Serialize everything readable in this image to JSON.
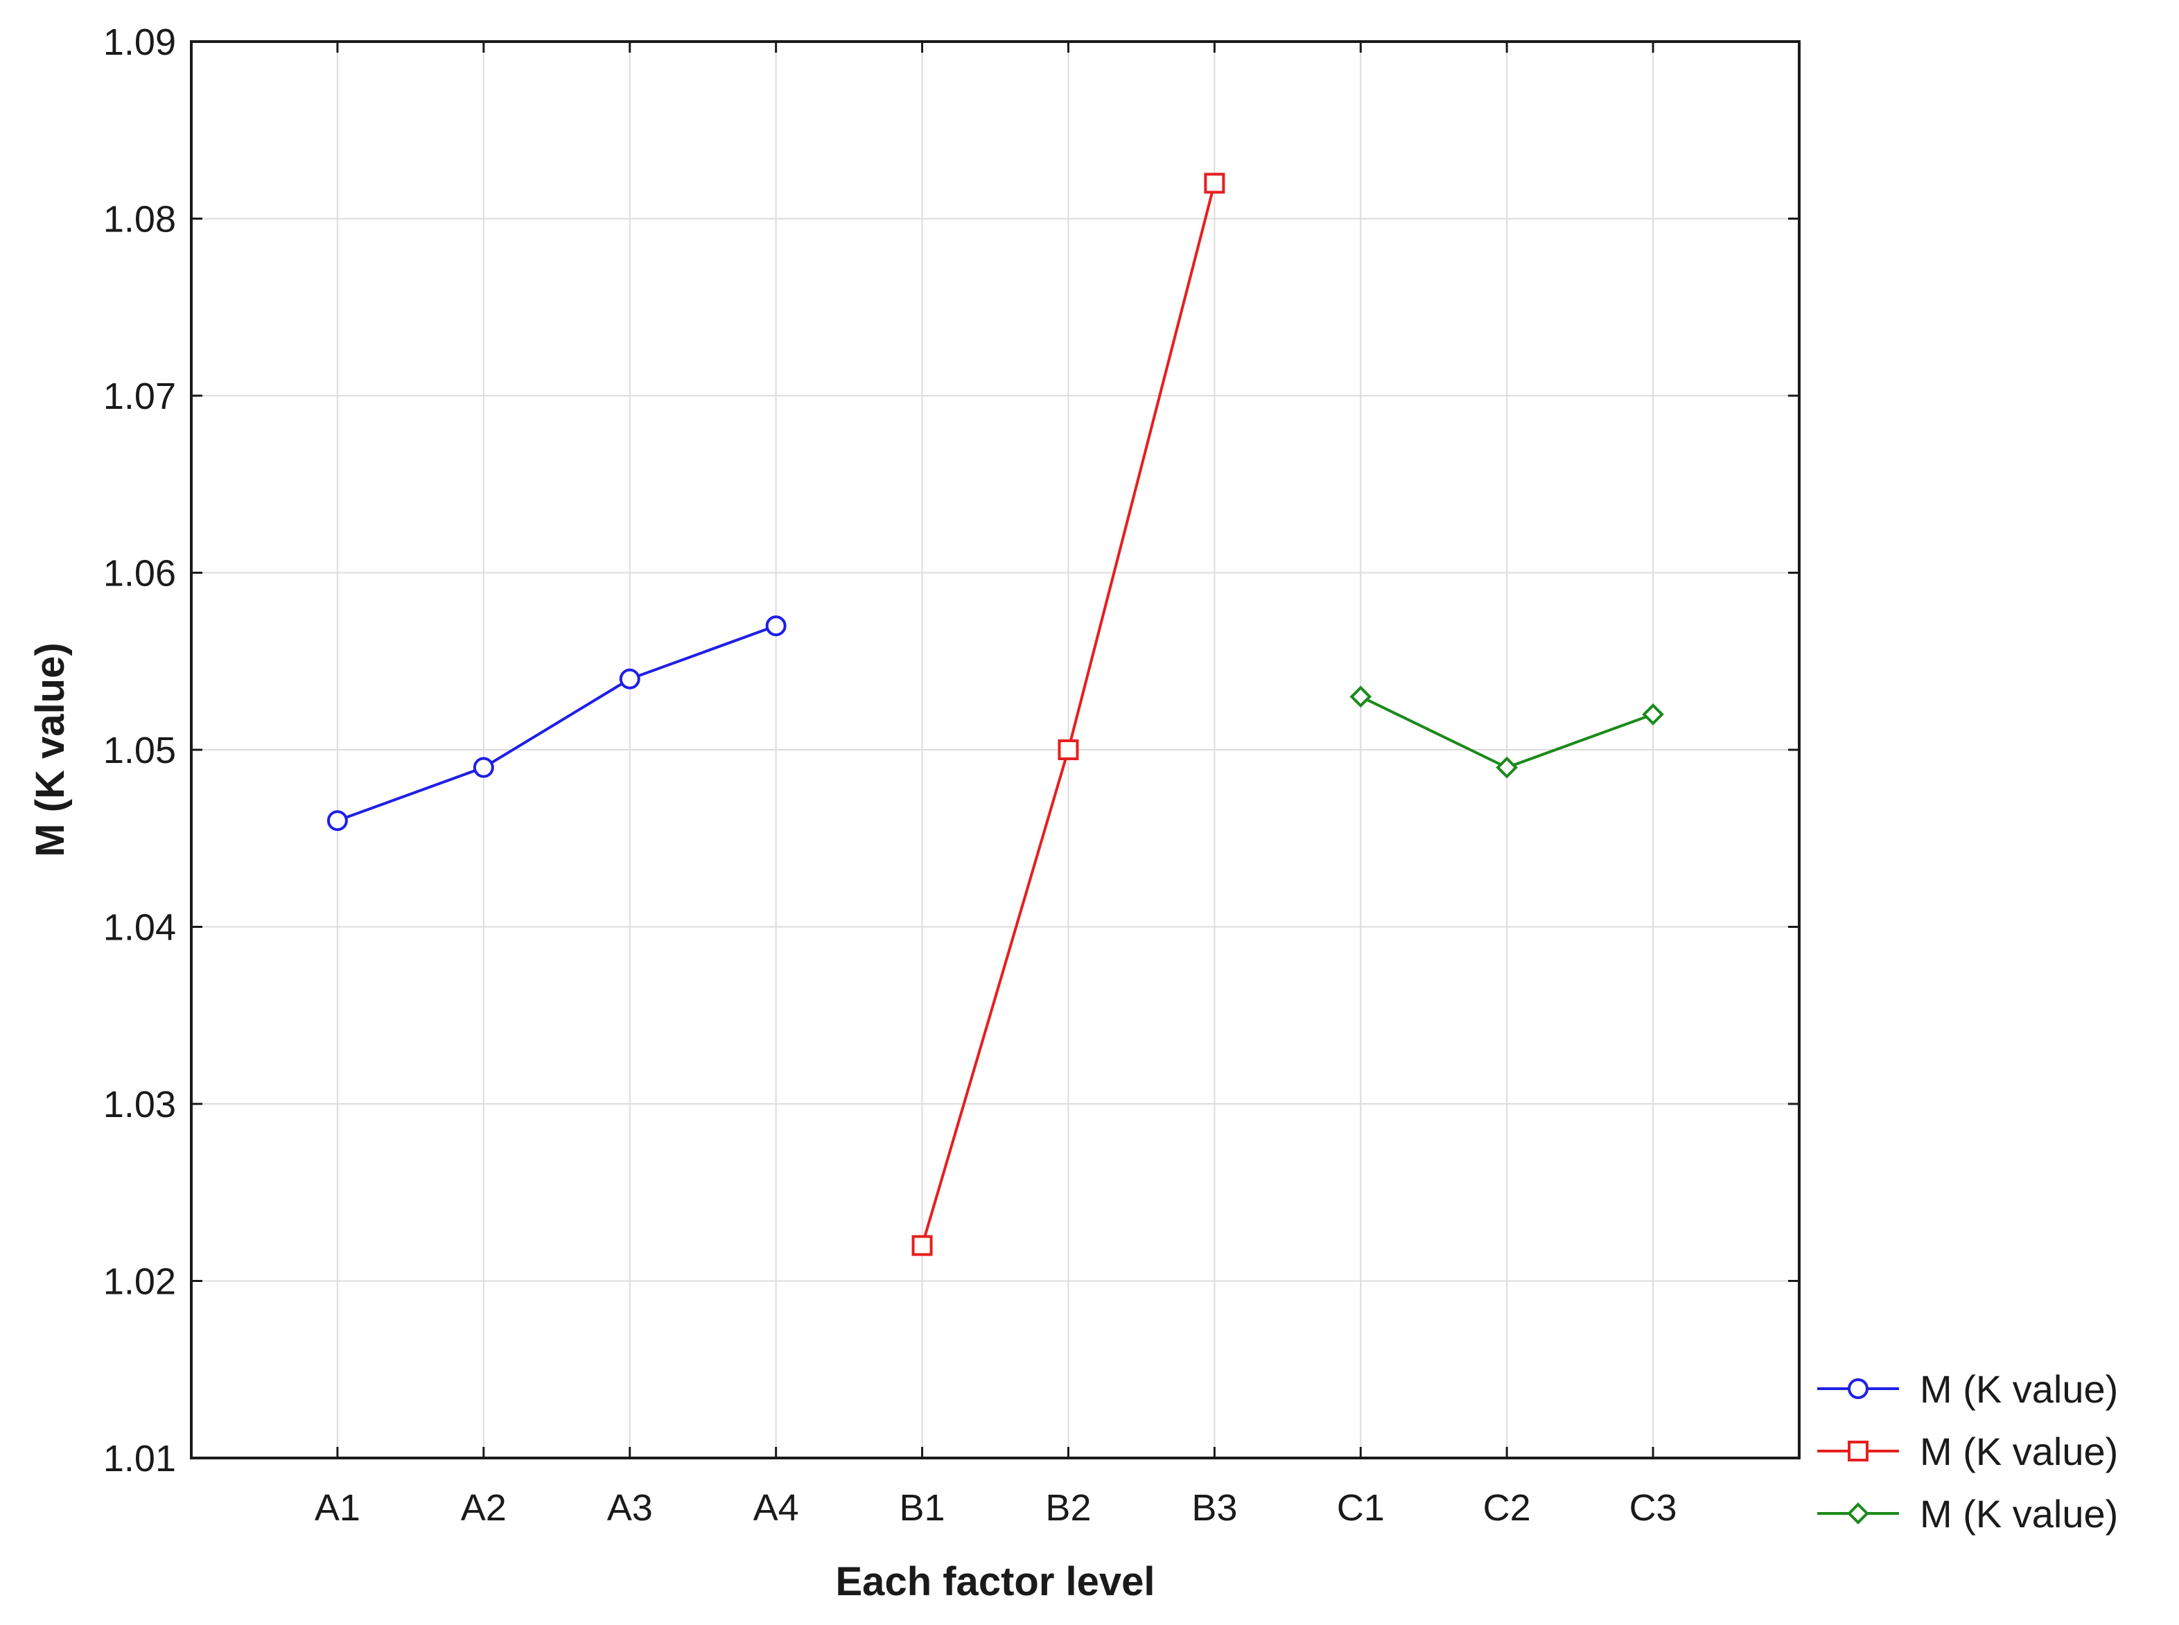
{
  "chart_data": {
    "type": "line",
    "title": "",
    "xlabel": "Each factor level",
    "ylabel": "M (K value)",
    "ylim": [
      1.01,
      1.09
    ],
    "yticks": [
      "1.01",
      "1.02",
      "1.03",
      "1.04",
      "1.05",
      "1.06",
      "1.07",
      "1.08",
      "1.09"
    ],
    "ytick_values": [
      1.01,
      1.02,
      1.03,
      1.04,
      1.05,
      1.06,
      1.07,
      1.08,
      1.09
    ],
    "categories": [
      "A1",
      "A2",
      "A3",
      "A4",
      "B1",
      "B2",
      "B3",
      "C1",
      "C2",
      "C3"
    ],
    "grid": true,
    "legend_position": "right, bottom",
    "series": [
      {
        "name": "M (K value)",
        "color": "#1f1fe6",
        "marker": "circle",
        "x": [
          "A1",
          "A2",
          "A3",
          "A4"
        ],
        "values": [
          1.046,
          1.049,
          1.054,
          1.057
        ]
      },
      {
        "name": "M (K value)",
        "color": "#e61f1f",
        "marker": "square",
        "x": [
          "B1",
          "B2",
          "B3"
        ],
        "values": [
          1.022,
          1.05,
          1.082
        ]
      },
      {
        "name": "M (K value)",
        "color": "#1a8a1a",
        "marker": "diamond",
        "x": [
          "C1",
          "C2",
          "C3"
        ],
        "values": [
          1.053,
          1.049,
          1.052
        ]
      }
    ]
  }
}
